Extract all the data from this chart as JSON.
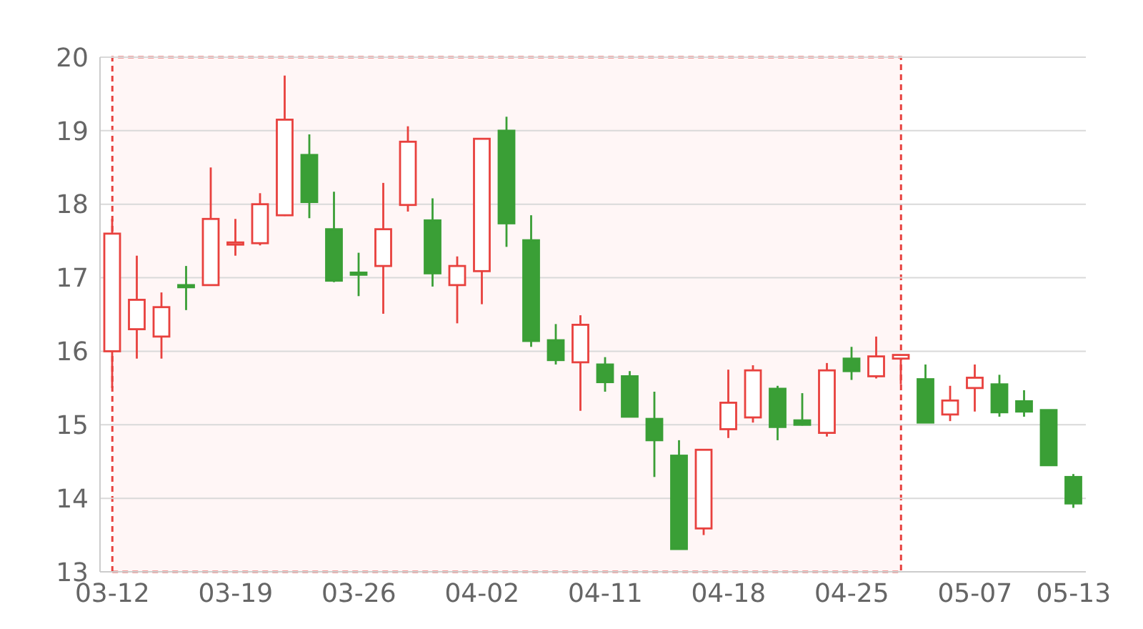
{
  "chart_data": {
    "type": "candlestick",
    "categories": [
      "03-12",
      null,
      null,
      null,
      null,
      "03-19",
      null,
      null,
      null,
      null,
      "03-26",
      null,
      null,
      null,
      null,
      "04-02",
      null,
      null,
      null,
      null,
      "04-11",
      null,
      null,
      null,
      null,
      "04-18",
      null,
      null,
      null,
      null,
      "04-25",
      null,
      null,
      null,
      null,
      "05-07",
      null,
      null,
      null,
      "05-13"
    ],
    "ohlc": [
      [
        16.0,
        17.8,
        15.5,
        17.6
      ],
      [
        16.3,
        17.3,
        15.9,
        16.7
      ],
      [
        16.2,
        16.8,
        15.9,
        16.6
      ],
      [
        16.9,
        17.16,
        16.56,
        16.88
      ],
      [
        16.9,
        18.5,
        16.9,
        17.8
      ],
      [
        17.46,
        17.8,
        17.3,
        17.48
      ],
      [
        17.47,
        18.15,
        17.44,
        18.0
      ],
      [
        17.85,
        19.75,
        17.84,
        19.15
      ],
      [
        18.67,
        18.95,
        17.81,
        18.03
      ],
      [
        17.66,
        18.17,
        16.94,
        16.96
      ],
      [
        17.07,
        17.34,
        16.75,
        17.05
      ],
      [
        17.16,
        18.29,
        16.51,
        17.66
      ],
      [
        17.99,
        19.06,
        17.9,
        18.85
      ],
      [
        17.78,
        18.08,
        16.88,
        17.06
      ],
      [
        16.9,
        17.29,
        16.38,
        17.16
      ],
      [
        17.09,
        18.89,
        16.64,
        18.89
      ],
      [
        19.0,
        19.19,
        17.42,
        17.74
      ],
      [
        17.51,
        17.85,
        16.06,
        16.14
      ],
      [
        16.15,
        16.37,
        15.82,
        15.88
      ],
      [
        15.85,
        16.49,
        15.19,
        16.36
      ],
      [
        15.82,
        15.92,
        15.45,
        15.58
      ],
      [
        15.66,
        15.73,
        15.11,
        15.11
      ],
      [
        15.08,
        15.45,
        14.29,
        14.79
      ],
      [
        14.58,
        14.79,
        13.31,
        13.31
      ],
      [
        13.59,
        14.66,
        13.5,
        14.66
      ],
      [
        14.94,
        15.75,
        14.82,
        15.3
      ],
      [
        15.1,
        15.81,
        15.03,
        15.74
      ],
      [
        15.49,
        15.53,
        14.79,
        14.97
      ],
      [
        15.06,
        15.43,
        14.99,
        15.0
      ],
      [
        14.89,
        15.84,
        14.84,
        15.74
      ],
      [
        15.9,
        16.06,
        15.61,
        15.73
      ],
      [
        15.66,
        16.2,
        15.63,
        15.93
      ],
      [
        15.9,
        15.95,
        15.55,
        15.95
      ],
      [
        15.62,
        15.82,
        15.03,
        15.03
      ],
      [
        15.14,
        15.53,
        15.05,
        15.33
      ],
      [
        15.5,
        15.82,
        15.18,
        15.64
      ],
      [
        15.55,
        15.68,
        15.11,
        15.17
      ],
      [
        15.32,
        15.47,
        15.11,
        15.18
      ],
      [
        15.2,
        15.2,
        14.45,
        14.45
      ],
      [
        14.29,
        14.33,
        13.87,
        13.93
      ]
    ],
    "colors": [
      "#e8413e",
      "#e8413e",
      "#e8413e",
      "#3a9f36",
      "#e8413e",
      "#e8413e",
      "#e8413e",
      "#e8413e",
      "#3a9f36",
      "#3a9f36",
      "#3a9f36",
      "#e8413e",
      "#e8413e",
      "#3a9f36",
      "#e8413e",
      "#e8413e",
      "#3a9f36",
      "#3a9f36",
      "#3a9f36",
      "#e8413e",
      "#3a9f36",
      "#3a9f36",
      "#3a9f36",
      "#3a9f36",
      "#e8413e",
      "#e8413e",
      "#e8413e",
      "#3a9f36",
      "#3a9f36",
      "#e8413e",
      "#3a9f36",
      "#e8413e",
      "#e8413e",
      "#3a9f36",
      "#e8413e",
      "#e8413e",
      "#3a9f36",
      "#3a9f36",
      "#3a9f36",
      "#3a9f36"
    ],
    "ylim": [
      13,
      20
    ],
    "yticks": [
      13,
      14,
      15,
      16,
      17,
      18,
      19,
      20
    ],
    "grid": "y"
  }
}
